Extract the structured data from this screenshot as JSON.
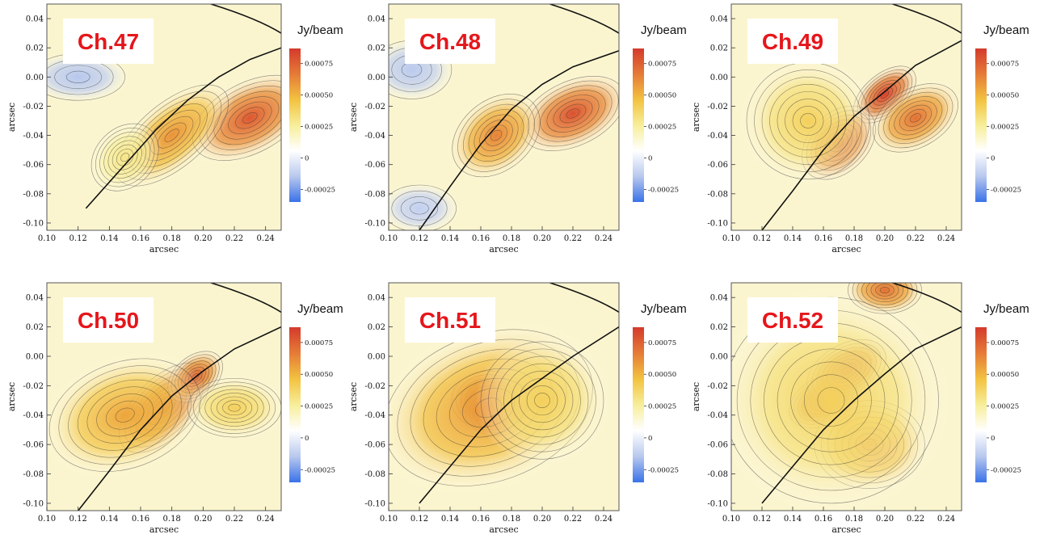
{
  "colorbar": {
    "title": "Jy/beam",
    "ticks": [
      -0.00025,
      0,
      0.00025,
      0.0005,
      0.00075
    ],
    "tick_labels": [
      "-0.00025",
      "0",
      "0.00025",
      "0.00050",
      "0.00075"
    ],
    "range": [
      -0.00035,
      0.00087
    ],
    "colormap": [
      "#3a72e8",
      "#b8c8ee",
      "#ffffff",
      "#f7ee9a",
      "#f3c240",
      "#e57b37",
      "#d43a2c"
    ]
  },
  "chart_data": [
    {
      "type": "heatmap",
      "title": "Ch.47",
      "xlabel": "arcsec",
      "ylabel": "arcsec",
      "xlim": [
        0.1,
        0.25
      ],
      "ylim": [
        -0.105,
        0.05
      ],
      "x_ticks": [
        "0.10",
        "0.12",
        "0.14",
        "0.16",
        "0.18",
        "0.20",
        "0.22",
        "0.24"
      ],
      "y_ticks": [
        "-0.10",
        "-0.08",
        "-0.06",
        "-0.04",
        "-0.02",
        "0.00",
        "0.02",
        "0.04"
      ],
      "caustic": [
        [
          0.125,
          -0.09
        ],
        [
          0.15,
          -0.06
        ],
        [
          0.17,
          -0.036
        ],
        [
          0.19,
          -0.016
        ],
        [
          0.21,
          0.0
        ],
        [
          0.23,
          0.012
        ],
        [
          0.25,
          0.02
        ]
      ],
      "features": [
        {
          "x": 0.23,
          "y": -0.028,
          "amplitude": 0.00078,
          "sx": 0.02,
          "sy": 0.012,
          "angle": 28
        },
        {
          "x": 0.18,
          "y": -0.04,
          "amplitude": 0.0006,
          "sx": 0.022,
          "sy": 0.011,
          "angle": 40
        },
        {
          "x": 0.15,
          "y": -0.055,
          "amplitude": 0.0003,
          "sx": 0.012,
          "sy": 0.01,
          "angle": 45
        },
        {
          "x": 0.12,
          "y": 0.0,
          "amplitude": -0.00015,
          "sx": 0.015,
          "sy": 0.008,
          "angle": 0
        }
      ]
    },
    {
      "type": "heatmap",
      "title": "Ch.48",
      "xlabel": "arcsec",
      "ylabel": "arcsec",
      "xlim": [
        0.1,
        0.25
      ],
      "ylim": [
        -0.105,
        0.05
      ],
      "x_ticks": [
        "0.10",
        "0.12",
        "0.14",
        "0.16",
        "0.18",
        "0.20",
        "0.22",
        "0.24"
      ],
      "y_ticks": [
        "-0.10",
        "-0.08",
        "-0.06",
        "-0.04",
        "-0.02",
        "0.00",
        "0.02",
        "0.04"
      ],
      "caustic": [
        [
          0.12,
          -0.105
        ],
        [
          0.14,
          -0.075
        ],
        [
          0.16,
          -0.046
        ],
        [
          0.18,
          -0.022
        ],
        [
          0.2,
          -0.005
        ],
        [
          0.22,
          0.007
        ],
        [
          0.25,
          0.018
        ]
      ],
      "features": [
        {
          "x": 0.22,
          "y": -0.025,
          "amplitude": 0.0008,
          "sx": 0.018,
          "sy": 0.011,
          "angle": 25
        },
        {
          "x": 0.17,
          "y": -0.04,
          "amplitude": 0.00065,
          "sx": 0.016,
          "sy": 0.012,
          "angle": 40
        },
        {
          "x": 0.12,
          "y": -0.09,
          "amplitude": -0.00012,
          "sx": 0.012,
          "sy": 0.008,
          "angle": 0
        },
        {
          "x": 0.115,
          "y": 0.005,
          "amplitude": -0.00014,
          "sx": 0.013,
          "sy": 0.01,
          "angle": 0
        }
      ]
    },
    {
      "type": "heatmap",
      "title": "Ch.49",
      "xlabel": "arcsec",
      "ylabel": "arcsec",
      "xlim": [
        0.1,
        0.25
      ],
      "ylim": [
        -0.105,
        0.05
      ],
      "x_ticks": [
        "0.10",
        "0.12",
        "0.14",
        "0.16",
        "0.18",
        "0.20",
        "0.22",
        "0.24"
      ],
      "y_ticks": [
        "-0.10",
        "-0.08",
        "-0.06",
        "-0.04",
        "-0.02",
        "0.00",
        "0.02",
        "0.04"
      ],
      "caustic": [
        [
          0.12,
          -0.105
        ],
        [
          0.14,
          -0.078
        ],
        [
          0.16,
          -0.05
        ],
        [
          0.18,
          -0.027
        ],
        [
          0.2,
          -0.01
        ],
        [
          0.22,
          0.008
        ],
        [
          0.25,
          0.025
        ]
      ],
      "features": [
        {
          "x": 0.2,
          "y": -0.012,
          "amplitude": 0.00085,
          "sx": 0.012,
          "sy": 0.007,
          "angle": 40
        },
        {
          "x": 0.17,
          "y": -0.045,
          "amplitude": 0.0008,
          "sx": 0.014,
          "sy": 0.01,
          "angle": 45
        },
        {
          "x": 0.22,
          "y": -0.028,
          "amplitude": 0.0007,
          "sx": 0.015,
          "sy": 0.01,
          "angle": 30
        },
        {
          "x": 0.15,
          "y": -0.03,
          "amplitude": 0.0004,
          "sx": 0.02,
          "sy": 0.02,
          "angle": 0
        }
      ]
    },
    {
      "type": "heatmap",
      "title": "Ch.50",
      "xlabel": "arcsec",
      "ylabel": "arcsec",
      "xlim": [
        0.1,
        0.25
      ],
      "ylim": [
        -0.105,
        0.05
      ],
      "x_ticks": [
        "0.10",
        "0.12",
        "0.14",
        "0.16",
        "0.18",
        "0.20",
        "0.22",
        "0.24"
      ],
      "y_ticks": [
        "-0.10",
        "-0.08",
        "-0.06",
        "-0.04",
        "-0.02",
        "0.00",
        "0.02",
        "0.04"
      ],
      "caustic": [
        [
          0.12,
          -0.105
        ],
        [
          0.14,
          -0.078
        ],
        [
          0.16,
          -0.05
        ],
        [
          0.18,
          -0.027
        ],
        [
          0.2,
          -0.01
        ],
        [
          0.22,
          0.005
        ],
        [
          0.25,
          0.02
        ]
      ],
      "features": [
        {
          "x": 0.175,
          "y": -0.035,
          "amplitude": 0.00085,
          "sx": 0.018,
          "sy": 0.01,
          "angle": 45
        },
        {
          "x": 0.195,
          "y": -0.014,
          "amplitude": 0.00075,
          "sx": 0.01,
          "sy": 0.007,
          "angle": 40
        },
        {
          "x": 0.15,
          "y": -0.04,
          "amplitude": 0.00055,
          "sx": 0.025,
          "sy": 0.018,
          "angle": 20
        },
        {
          "x": 0.22,
          "y": -0.035,
          "amplitude": 0.0004,
          "sx": 0.015,
          "sy": 0.01,
          "angle": 0
        }
      ]
    },
    {
      "type": "heatmap",
      "title": "Ch.51",
      "xlabel": "arcsec",
      "ylabel": "arcsec",
      "xlim": [
        0.1,
        0.25
      ],
      "ylim": [
        -0.105,
        0.05
      ],
      "x_ticks": [
        "0.10",
        "0.12",
        "0.14",
        "0.16",
        "0.18",
        "0.20",
        "0.22",
        "0.24"
      ],
      "y_ticks": [
        "-0.10",
        "-0.08",
        "-0.06",
        "-0.04",
        "-0.02",
        "0.00",
        "0.02",
        "0.04"
      ],
      "caustic": [
        [
          0.12,
          -0.1
        ],
        [
          0.14,
          -0.075
        ],
        [
          0.16,
          -0.05
        ],
        [
          0.18,
          -0.03
        ],
        [
          0.2,
          -0.015
        ],
        [
          0.22,
          0.0
        ],
        [
          0.25,
          0.02
        ]
      ],
      "features": [
        {
          "x": 0.165,
          "y": -0.03,
          "amplitude": 0.0009,
          "sx": 0.012,
          "sy": 0.01,
          "angle": 0
        },
        {
          "x": 0.17,
          "y": -0.038,
          "amplitude": 0.00085,
          "sx": 0.01,
          "sy": 0.008,
          "angle": 0
        },
        {
          "x": 0.165,
          "y": -0.035,
          "amplitude": 0.0006,
          "sx": 0.035,
          "sy": 0.025,
          "angle": 20
        },
        {
          "x": 0.2,
          "y": -0.03,
          "amplitude": 0.0004,
          "sx": 0.02,
          "sy": 0.02,
          "angle": 0
        }
      ]
    },
    {
      "type": "heatmap",
      "title": "Ch.52",
      "xlabel": "arcsec",
      "ylabel": "arcsec",
      "xlim": [
        0.1,
        0.25
      ],
      "ylim": [
        -0.105,
        0.05
      ],
      "x_ticks": [
        "0.10",
        "0.12",
        "0.14",
        "0.16",
        "0.18",
        "0.20",
        "0.22",
        "0.24"
      ],
      "y_ticks": [
        "-0.10",
        "-0.08",
        "-0.06",
        "-0.04",
        "-0.02",
        "0.00",
        "0.02",
        "0.04"
      ],
      "caustic": [
        [
          0.12,
          -0.1
        ],
        [
          0.14,
          -0.075
        ],
        [
          0.16,
          -0.05
        ],
        [
          0.18,
          -0.03
        ],
        [
          0.2,
          -0.012
        ],
        [
          0.22,
          0.005
        ],
        [
          0.25,
          0.02
        ]
      ],
      "features": [
        {
          "x": 0.16,
          "y": -0.03,
          "amplitude": 0.00085,
          "sx": 0.012,
          "sy": 0.008,
          "angle": 30
        },
        {
          "x": 0.175,
          "y": -0.01,
          "amplitude": 0.0008,
          "sx": 0.014,
          "sy": 0.009,
          "angle": 30
        },
        {
          "x": 0.19,
          "y": -0.06,
          "amplitude": 0.0006,
          "sx": 0.018,
          "sy": 0.015,
          "angle": 0
        },
        {
          "x": 0.2,
          "y": 0.045,
          "amplitude": 0.0007,
          "sx": 0.012,
          "sy": 0.008,
          "angle": 0
        },
        {
          "x": 0.165,
          "y": -0.03,
          "amplitude": 0.0004,
          "sx": 0.035,
          "sy": 0.035,
          "angle": 0
        }
      ]
    }
  ]
}
